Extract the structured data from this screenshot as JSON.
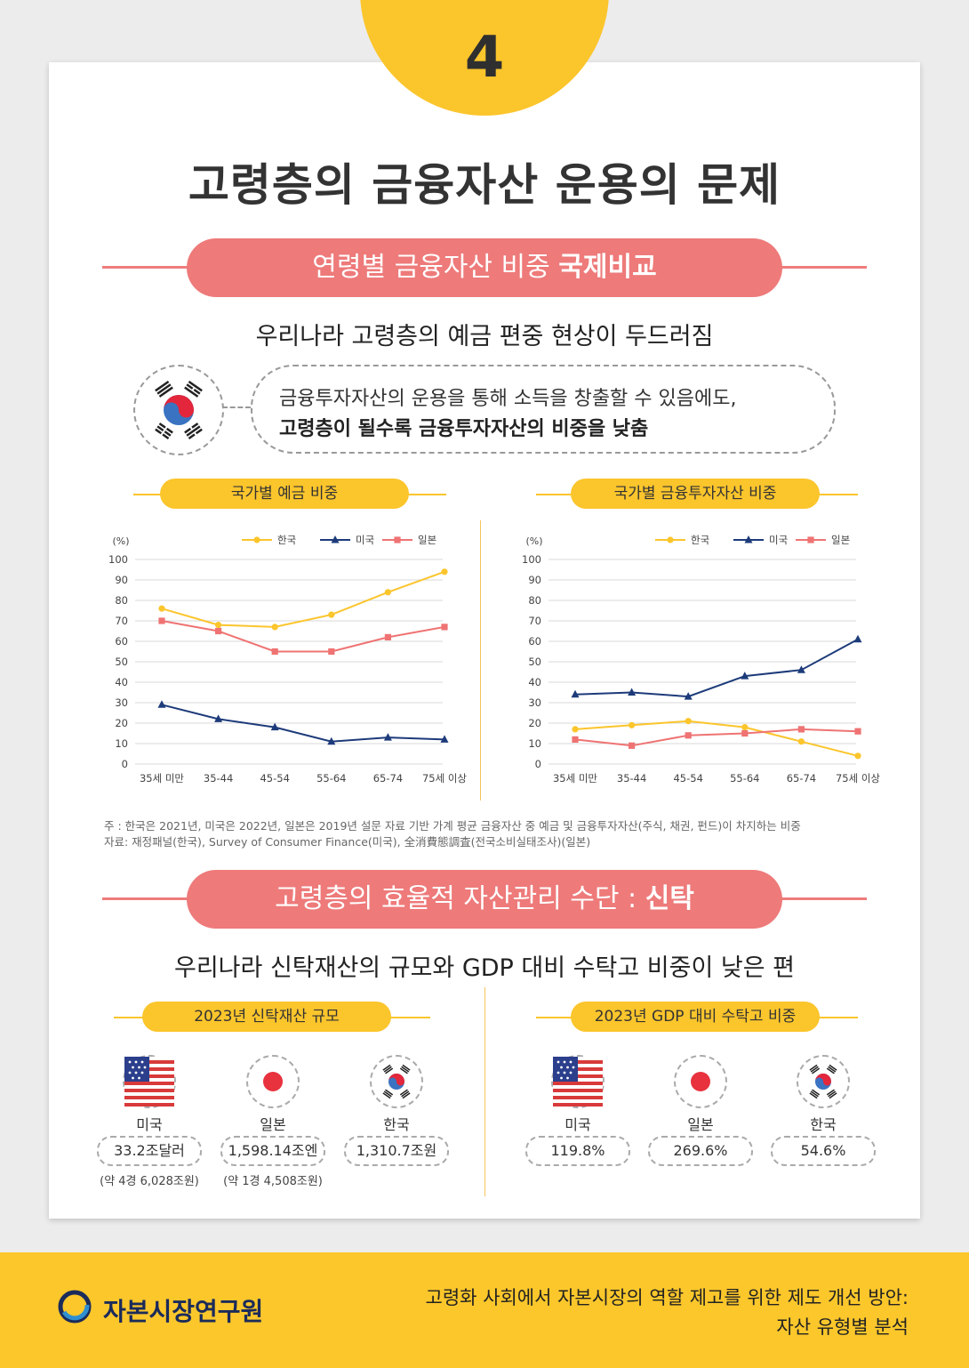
{
  "badge_number": "4",
  "title": "고령층의 금융자산 운용의 문제",
  "section1": {
    "pill_normal": "연령별 금융자산 비중 ",
    "pill_bold": "국제비교",
    "subhead": "우리나라 고령층의 예금 편중 현상이 두드러짐",
    "bubble_line1": "금융투자자산의 운용을 통해 소득을 창출할 수 있음에도,",
    "bubble_line2": "고령층이 될수록 금융투자자산의 비중을 낮춤"
  },
  "chart_data": [
    {
      "type": "line",
      "title": "국가별 예금 비중",
      "ylabel": "(%)",
      "ylim": [
        0,
        100
      ],
      "yticks": [
        0,
        10,
        20,
        30,
        40,
        50,
        60,
        70,
        80,
        90,
        100
      ],
      "categories": [
        "35세 미만",
        "35-44",
        "45-54",
        "55-64",
        "65-74",
        "75세 이상"
      ],
      "legend": "top-right",
      "series": [
        {
          "name": "한국",
          "color": "#fbc52c",
          "marker": "circle",
          "values": [
            76,
            68,
            67,
            73,
            84,
            94
          ]
        },
        {
          "name": "미국",
          "color": "#1d3b7a",
          "marker": "triangle",
          "values": [
            29,
            22,
            18,
            11,
            13,
            12
          ]
        },
        {
          "name": "일본",
          "color": "#ef7373",
          "marker": "square",
          "values": [
            70,
            65,
            55,
            55,
            62,
            67
          ]
        }
      ]
    },
    {
      "type": "line",
      "title": "국가별 금융투자자산 비중",
      "ylabel": "(%)",
      "ylim": [
        0,
        100
      ],
      "yticks": [
        0,
        10,
        20,
        30,
        40,
        50,
        60,
        70,
        80,
        90,
        100
      ],
      "categories": [
        "35세 미만",
        "35-44",
        "45-54",
        "55-64",
        "65-74",
        "75세 이상"
      ],
      "legend": "top-right",
      "series": [
        {
          "name": "한국",
          "color": "#fbc52c",
          "marker": "circle",
          "values": [
            17,
            19,
            21,
            18,
            11,
            4
          ]
        },
        {
          "name": "미국",
          "color": "#1d3b7a",
          "marker": "triangle",
          "values": [
            34,
            35,
            33,
            43,
            46,
            61
          ]
        },
        {
          "name": "일본",
          "color": "#ef7373",
          "marker": "square",
          "values": [
            12,
            9,
            14,
            15,
            17,
            16
          ]
        }
      ]
    }
  ],
  "notes": {
    "line1": "주    : 한국은 2021년, 미국은 2022년, 일본은 2019년 설문 자료 기반 가계 평균 금융자산 중 예금 및 금융투자자산(주식, 채권, 펀드)이 차지하는 비중",
    "line2": "자료: 재정패널(한국), Survey of Consumer Finance(미국), 全消費態調査(전국소비실태조사)(일본)"
  },
  "section2": {
    "pill_normal": "고령층의 효율적 자산관리 수단 : ",
    "pill_bold": "신탁",
    "subhead": "우리나라 신탁재산의 규모와 GDP 대비 수탁고 비중이 낮은 편"
  },
  "trust_size": {
    "title": "2023년 신탁재산 규모",
    "items": [
      {
        "country": "미국",
        "value": "33.2조달러",
        "sub": "(약 4경 6,028조원)"
      },
      {
        "country": "일본",
        "value": "1,598.14조엔",
        "sub": "(약 1경 4,508조원)"
      },
      {
        "country": "한국",
        "value": "1,310.7조원",
        "sub": ""
      }
    ]
  },
  "trust_gdp": {
    "title": "2023년 GDP 대비 수탁고 비중",
    "items": [
      {
        "country": "미국",
        "value": "119.8%"
      },
      {
        "country": "일본",
        "value": "269.6%"
      },
      {
        "country": "한국",
        "value": "54.6%"
      }
    ]
  },
  "footer": {
    "logo": "자본시장연구원",
    "line1": "고령화 사회에서 자본시장의 역할  제고를 위한 제도 개선 방안:",
    "line2": "자산 유형별 분석"
  },
  "colors": {
    "yellow": "#fbc52c",
    "coral": "#ee7a7a",
    "navy": "#1d3b7a"
  }
}
